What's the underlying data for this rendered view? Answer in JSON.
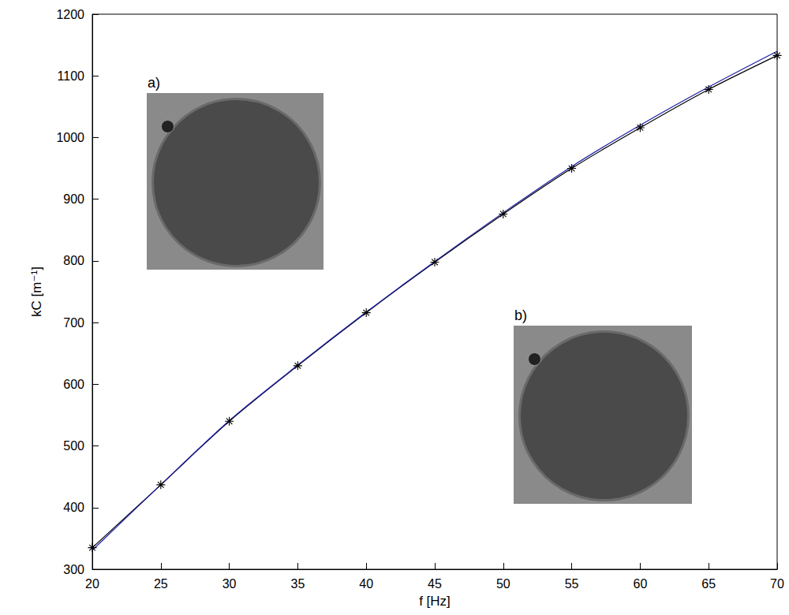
{
  "chart_data": {
    "type": "line",
    "x_label": "f [Hz]",
    "y_label": "kC [m⁻¹]",
    "x": [
      20,
      25,
      30,
      35,
      40,
      45,
      50,
      55,
      60,
      65,
      70
    ],
    "series": [
      {
        "color": "#000000",
        "marker": "asterisk",
        "line_style": "solid",
        "values": [
          335,
          437,
          540,
          630,
          716,
          798,
          876,
          950,
          1016,
          1078,
          1133
        ]
      },
      {
        "color": "#1c1ca8",
        "marker": "none",
        "line_style": "solid",
        "values": [
          331,
          437,
          541,
          631,
          717,
          799,
          878,
          953,
          1020,
          1082,
          1140
        ]
      }
    ],
    "xlim": [
      20,
      70
    ],
    "xticks": [
      20,
      25,
      30,
      35,
      40,
      45,
      50,
      55,
      60,
      65,
      70
    ],
    "ylim": [
      300,
      1200
    ],
    "yticks": [
      300,
      400,
      500,
      600,
      700,
      800,
      900,
      1000,
      1100,
      1200
    ],
    "grid": false,
    "annotations": [
      "a)",
      "b)"
    ]
  }
}
